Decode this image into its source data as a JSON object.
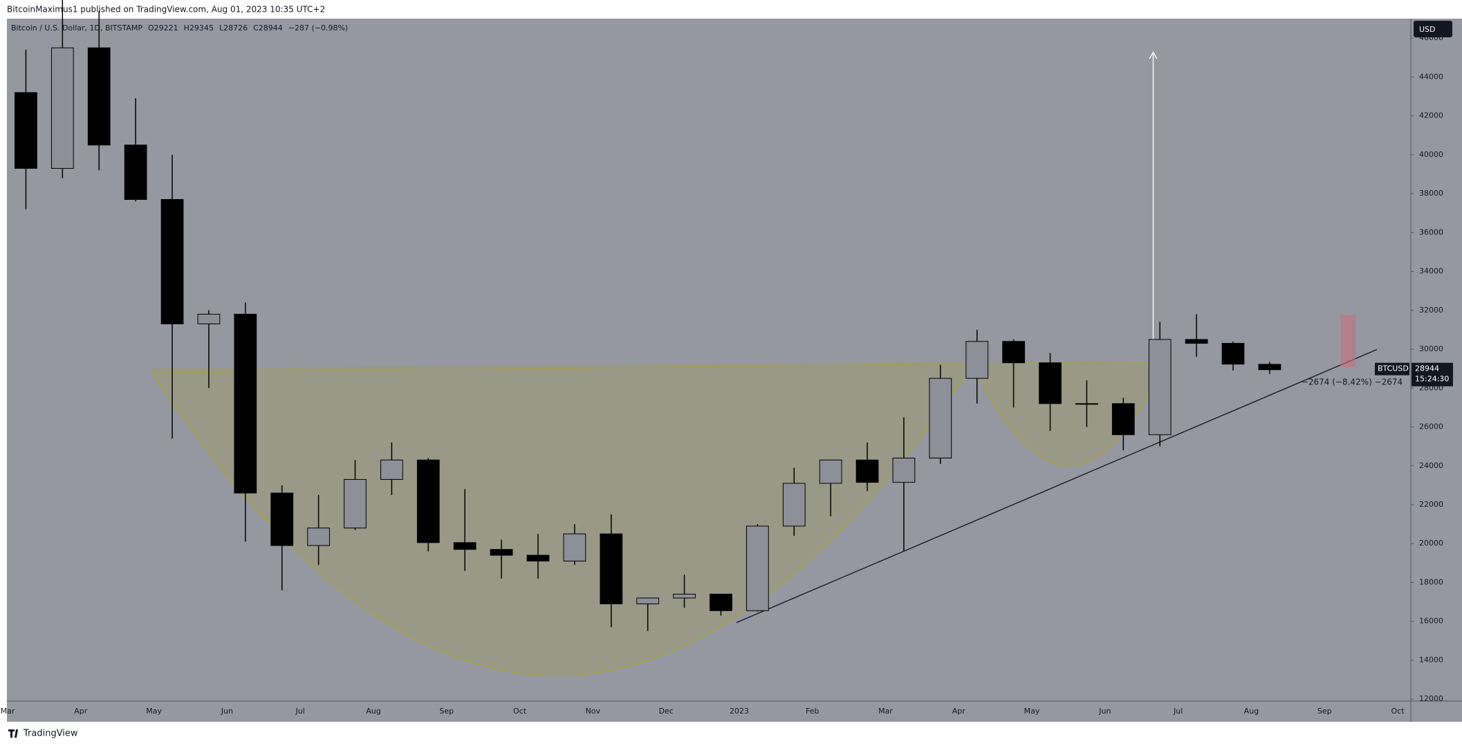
{
  "header": {
    "publisher": "BitcoinMaximus1 published on TradingView.com, Aug 01, 2023 10:35 UTC+2"
  },
  "footer": {
    "brand": "TradingView"
  },
  "chart_data": {
    "type": "candlestick",
    "title": "Bitcoin / U.S. Dollar, 1D, BITSTAMP",
    "ohlc_letters": [
      "O",
      "H",
      "L",
      "C"
    ],
    "change_text": "−287 (−0.98%)",
    "symbol": "BTCUSD",
    "countdown": "15:24:30",
    "currency": "USD",
    "measure_text": "−2674 (−8.42%) −2674",
    "categories": [
      "Mar",
      null,
      "Apr",
      null,
      "May",
      null,
      "Jun",
      null,
      "Jul",
      null,
      "Aug",
      null,
      "Sep",
      null,
      "Oct",
      null,
      "Nov",
      null,
      "Dec",
      null,
      "2023",
      null,
      "Feb",
      null,
      "Mar",
      null,
      "Apr",
      null,
      "May",
      null,
      "Jun",
      null,
      "Jul",
      null,
      "Aug",
      null,
      "Sep",
      null,
      "Oct"
    ],
    "open": [
      43200,
      39300,
      45500,
      40500,
      37700,
      31300,
      31800,
      22600,
      19900,
      20800,
      23300,
      24300,
      20050,
      19700,
      19400,
      19100,
      20500,
      16900,
      17200,
      17400,
      16550,
      20900,
      23100,
      24300,
      23150,
      24400,
      28500,
      30400,
      29300,
      27200,
      27200,
      25600,
      30500,
      30300,
      29221,
      null,
      null,
      null,
      null
    ],
    "high": [
      45400,
      48200,
      47400,
      42900,
      40000,
      32000,
      32400,
      23000,
      22500,
      24300,
      25200,
      24400,
      22800,
      20200,
      20500,
      21000,
      21500,
      17200,
      18400,
      17400,
      21000,
      23900,
      24300,
      25200,
      26500,
      29200,
      31000,
      30500,
      29800,
      28400,
      27500,
      31400,
      31800,
      30400,
      29345,
      null,
      null,
      null,
      null
    ],
    "low": [
      37200,
      38800,
      39200,
      37600,
      25400,
      28000,
      20100,
      17600,
      18900,
      20700,
      22500,
      19600,
      18600,
      18200,
      18200,
      18900,
      15700,
      15500,
      16700,
      16300,
      16500,
      20400,
      21400,
      22700,
      19600,
      24100,
      27200,
      27000,
      25800,
      26000,
      24800,
      25000,
      29600,
      28900,
      28726,
      null,
      null,
      null,
      null
    ],
    "close": [
      39300,
      45500,
      40500,
      37700,
      31300,
      31800,
      22600,
      19900,
      20800,
      23300,
      24300,
      20050,
      19700,
      19400,
      19100,
      20500,
      16900,
      17200,
      17400,
      16550,
      20900,
      23100,
      24300,
      23150,
      24400,
      28500,
      30400,
      29300,
      27200,
      27200,
      25600,
      30500,
      30300,
      29230,
      28944,
      null,
      null,
      null,
      null
    ],
    "up_color": "#8d9099",
    "down_color": "#000000",
    "ylim": [
      11900,
      47000
    ],
    "yticks": [
      12000,
      14000,
      16000,
      18000,
      20000,
      22000,
      24000,
      26000,
      28000,
      30000,
      32000,
      34000,
      36000,
      38000,
      40000,
      42000,
      44000,
      46000
    ]
  }
}
